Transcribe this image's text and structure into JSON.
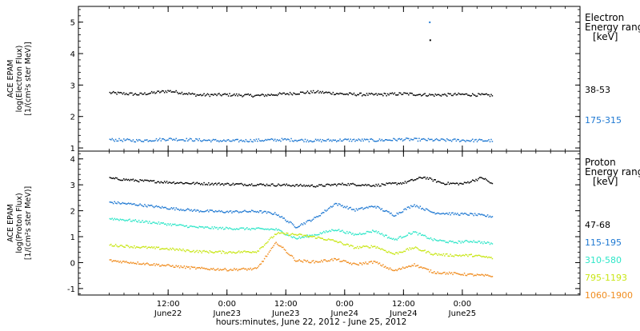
{
  "chart_data": [
    {
      "type": "scatter",
      "panel": "electron",
      "ylabel_lines": [
        "ACE EPAM",
        "log(Electron Flux)",
        "[1/(cm²s ster MeV)]"
      ],
      "ylim": [
        0.9,
        5.5
      ],
      "yticks": [
        1,
        2,
        3,
        4,
        5
      ],
      "legend": {
        "title_lines": [
          "Electron",
          "Energy ranges",
          "[keV]"
        ],
        "placement": "right",
        "entries": [
          {
            "label": "38-53",
            "color": "#000000"
          },
          {
            "label": "175-315",
            "color": "#1e78d2"
          }
        ]
      },
      "series": [
        {
          "name": "38-53",
          "color": "#000000",
          "x": [
            0,
            6,
            12,
            18,
            24,
            30,
            36,
            42,
            48,
            54,
            60,
            66,
            72,
            78
          ],
          "y": [
            2.77,
            2.72,
            2.83,
            2.7,
            2.71,
            2.68,
            2.74,
            2.8,
            2.73,
            2.71,
            2.74,
            2.7,
            2.72,
            2.69
          ],
          "isolated_points": [
            {
              "x": 65.3,
              "y": 4.45
            }
          ]
        },
        {
          "name": "175-315",
          "color": "#1e78d2",
          "x": [
            0,
            6,
            12,
            18,
            24,
            30,
            36,
            42,
            48,
            54,
            60,
            66,
            72,
            78
          ],
          "y": [
            1.28,
            1.25,
            1.3,
            1.27,
            1.24,
            1.26,
            1.28,
            1.25,
            1.27,
            1.26,
            1.29,
            1.27,
            1.26,
            1.25
          ],
          "isolated_points": [
            {
              "x": 65.2,
              "y": 5.02
            }
          ]
        }
      ]
    },
    {
      "type": "scatter",
      "panel": "proton",
      "ylabel_lines": [
        "ACE EPAM",
        "log(Proton Flux)",
        "[1/(cm²s ster MeV)]"
      ],
      "ylim": [
        -1.25,
        4.3
      ],
      "yticks": [
        -1,
        0,
        1,
        2,
        3,
        4
      ],
      "legend": {
        "title_lines": [
          "Proton",
          "Energy ranges",
          "[keV]"
        ],
        "placement": "right",
        "entries": [
          {
            "label": "47-68",
            "color": "#000000"
          },
          {
            "label": "115-195",
            "color": "#1e78d2"
          },
          {
            "label": "310-580",
            "color": "#2ee6c8"
          },
          {
            "label": "795-1193",
            "color": "#c8e614"
          },
          {
            "label": "1060-1900",
            "color": "#f08c1e"
          }
        ]
      },
      "series": [
        {
          "name": "47-68",
          "color": "#000000",
          "x": [
            0,
            6,
            12,
            18,
            24,
            30,
            36,
            42,
            48,
            54,
            60,
            64,
            68,
            72,
            76,
            78
          ],
          "y": [
            3.27,
            3.18,
            3.12,
            3.07,
            3.05,
            3.03,
            3.01,
            2.98,
            3.05,
            3.0,
            3.1,
            3.32,
            3.08,
            3.06,
            3.3,
            3.05
          ]
        },
        {
          "name": "115-195",
          "color": "#1e78d2",
          "x": [
            0,
            6,
            12,
            18,
            24,
            30,
            34,
            38,
            42,
            46,
            50,
            54,
            58,
            62,
            66,
            70,
            74,
            78
          ],
          "y": [
            2.35,
            2.25,
            2.12,
            2.02,
            1.98,
            2.0,
            1.9,
            1.4,
            1.75,
            2.3,
            2.05,
            2.2,
            1.85,
            2.25,
            1.95,
            1.9,
            1.88,
            1.8
          ]
        },
        {
          "name": "310-580",
          "color": "#2ee6c8",
          "x": [
            0,
            6,
            12,
            18,
            24,
            30,
            34,
            38,
            42,
            46,
            50,
            54,
            58,
            62,
            66,
            70,
            74,
            78
          ],
          "y": [
            1.72,
            1.62,
            1.5,
            1.38,
            1.34,
            1.32,
            1.3,
            0.95,
            1.1,
            1.3,
            1.1,
            1.25,
            0.9,
            1.2,
            0.9,
            0.8,
            0.85,
            0.75
          ]
        },
        {
          "name": "795-1193",
          "color": "#c8e614",
          "x": [
            0,
            6,
            12,
            18,
            24,
            30,
            34,
            38,
            42,
            46,
            50,
            54,
            58,
            62,
            66,
            70,
            74,
            78
          ],
          "y": [
            0.7,
            0.62,
            0.55,
            0.45,
            0.42,
            0.45,
            1.15,
            1.1,
            1.0,
            0.85,
            0.6,
            0.65,
            0.35,
            0.6,
            0.35,
            0.3,
            0.3,
            0.2
          ]
        },
        {
          "name": "1060-1900",
          "color": "#f08c1e",
          "x": [
            0,
            6,
            12,
            18,
            24,
            30,
            34,
            38,
            42,
            46,
            50,
            54,
            58,
            62,
            66,
            70,
            74,
            78
          ],
          "y": [
            0.1,
            0.0,
            -0.1,
            -0.2,
            -0.25,
            -0.22,
            0.8,
            0.1,
            0.05,
            0.15,
            -0.05,
            0.05,
            -0.3,
            -0.05,
            -0.35,
            -0.4,
            -0.45,
            -0.5
          ]
        }
      ]
    }
  ],
  "x_axis": {
    "range": [
      -6.3,
      96
    ],
    "ticks": [
      {
        "x": 12,
        "top": "12:00",
        "bottom": "June22"
      },
      {
        "x": 24,
        "top": "0:00",
        "bottom": "June23"
      },
      {
        "x": 36,
        "top": "12:00",
        "bottom": "June23"
      },
      {
        "x": 48,
        "top": "0:00",
        "bottom": "June24"
      },
      {
        "x": 60,
        "top": "12:00",
        "bottom": "June24"
      },
      {
        "x": 72,
        "top": "0:00",
        "bottom": "June25"
      }
    ],
    "label": "hours:minutes, June 22, 2012 - June 25, 2012"
  }
}
